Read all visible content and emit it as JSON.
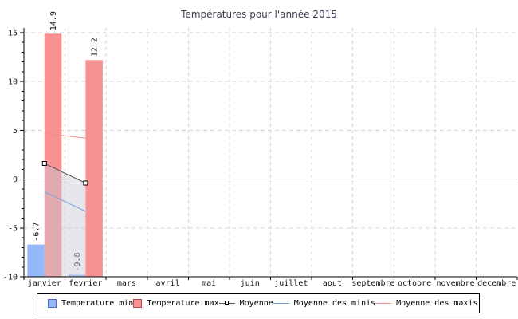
{
  "title": "Températures pour l'année 2015",
  "colors": {
    "background": "#ffffff",
    "title": "#3a3f54",
    "axis": "#000000",
    "grid": "#d4d4d4",
    "zero_line": "#a9a9a9",
    "area_fill": "rgba(200,200,210,0.45)",
    "legend_border": "#000000",
    "label_text": "#111111"
  },
  "chart_data": {
    "type": "bar",
    "subtype": "bar+line combo",
    "title": "Températures pour l'année 2015",
    "xlabel": "",
    "ylabel": "",
    "categories": [
      "janvier",
      "fevrier",
      "mars",
      "avril",
      "mai",
      "juin",
      "juillet",
      "aout",
      "septembre",
      "octobre",
      "novembre",
      "decembre"
    ],
    "ylim": [
      -10,
      15
    ],
    "yticks": [
      15,
      10,
      5,
      0,
      -5,
      -10
    ],
    "minor_tick_step": 1,
    "grid": true,
    "legend_position": "bottom",
    "bar_value_labels_rotated": true,
    "series": [
      {
        "name": "Temperature min",
        "type": "bar",
        "color": "#94b8f8",
        "border": "#4a66c8",
        "values": [
          -6.7,
          -9.8,
          null,
          null,
          null,
          null,
          null,
          null,
          null,
          null,
          null,
          null
        ]
      },
      {
        "name": "Temperature max",
        "type": "bar",
        "color": "#f89191",
        "border": "#b84848",
        "values": [
          14.9,
          12.2,
          null,
          null,
          null,
          null,
          null,
          null,
          null,
          null,
          null,
          null
        ]
      },
      {
        "name": "Moyenne",
        "type": "line",
        "color": "#555555",
        "marker": "square",
        "marker_fill": "#ffffff",
        "marker_border": "#000000",
        "area_fill_below": true,
        "values": [
          1.6,
          -0.4,
          null,
          null,
          null,
          null,
          null,
          null,
          null,
          null,
          null,
          null
        ]
      },
      {
        "name": "Moyenne des minis",
        "type": "line",
        "color": "#7aa0e8",
        "marker": "none",
        "values": [
          -1.3,
          -3.3,
          null,
          null,
          null,
          null,
          null,
          null,
          null,
          null,
          null,
          null
        ]
      },
      {
        "name": "Moyenne des maxis",
        "type": "line",
        "color": "#f28b8b",
        "marker": "none",
        "values": [
          4.7,
          4.2,
          null,
          null,
          null,
          null,
          null,
          null,
          null,
          null,
          null,
          null
        ]
      }
    ]
  },
  "legend": {
    "items": [
      {
        "label": "Temperature min"
      },
      {
        "label": "Temperature max"
      },
      {
        "label": "Moyenne"
      },
      {
        "label": "Moyenne des minis"
      },
      {
        "label": "Moyenne des maxis"
      }
    ]
  }
}
